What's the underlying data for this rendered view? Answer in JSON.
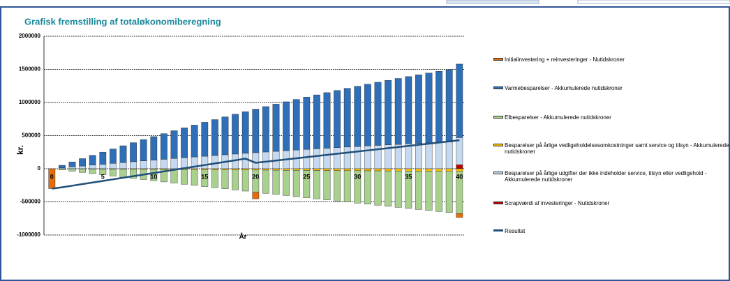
{
  "chart_data": {
    "type": "bar",
    "title": "Grafisk fremstilling af totaløkonomiberegning",
    "y_label": "kr.",
    "x_label": "År",
    "categories": [
      "0",
      null,
      null,
      null,
      null,
      "5",
      null,
      null,
      null,
      null,
      "10",
      null,
      null,
      null,
      null,
      "15",
      null,
      null,
      null,
      null,
      "20",
      null,
      null,
      null,
      null,
      "25",
      null,
      null,
      null,
      null,
      "30",
      null,
      null,
      null,
      null,
      "35",
      null,
      null,
      null,
      null,
      "40"
    ],
    "ylim": [
      -1000000,
      2000000
    ],
    "yticks": [
      -1000000,
      -500000,
      0,
      500000,
      1000000,
      1500000,
      2000000
    ],
    "grid": true,
    "legend": "right",
    "series": [
      {
        "name": "Initialinvestering + reinvesteringer - Nutidskroner",
        "color": "#e46c0a",
        "values": [
          -300000,
          0,
          0,
          0,
          0,
          0,
          0,
          0,
          0,
          0,
          0,
          0,
          0,
          0,
          0,
          0,
          0,
          0,
          0,
          0,
          -100000,
          0,
          0,
          0,
          0,
          0,
          0,
          0,
          0,
          0,
          0,
          0,
          0,
          0,
          0,
          0,
          0,
          0,
          0,
          0,
          -60000
        ]
      },
      {
        "name": "Varmebesparelser - Akkumulerede nutidskroner",
        "color": "#2e6fb7",
        "values": [
          0,
          38000,
          75000,
          112000,
          147000,
          183000,
          218000,
          253000,
          288000,
          321000,
          354000,
          387000,
          419000,
          450000,
          481000,
          512000,
          542000,
          572000,
          601000,
          629000,
          657000,
          685000,
          712000,
          738000,
          763000,
          789000,
          814000,
          839000,
          863000,
          886000,
          909000,
          932000,
          953000,
          975000,
          995000,
          1015000,
          1035000,
          1055000,
          1074000,
          1092000,
          1110000
        ]
      },
      {
        "name": "Elbesparelser - Akkumulerede nutidskroner",
        "color": "#a9d18e",
        "values": [
          0,
          -17000,
          -35000,
          -52000,
          -69000,
          -86000,
          -104000,
          -121000,
          -137000,
          -154000,
          -171000,
          -188000,
          -204000,
          -221000,
          -237000,
          -254000,
          -270000,
          -286000,
          -302000,
          -318000,
          -334000,
          -350000,
          -366000,
          -381000,
          -397000,
          -413000,
          -428000,
          -443000,
          -459000,
          -474000,
          -489000,
          -504000,
          -519000,
          -534000,
          -549000,
          -564000,
          -578000,
          -593000,
          -607000,
          -622000,
          -636000
        ]
      },
      {
        "name": "Besparelser på årlige vedligeholdelsesomkostninger samt service og tilsyn - Akkumulerede nutidskroner",
        "color": "#ffc000",
        "values": [
          0,
          -1000,
          -2000,
          -3000,
          -4000,
          -5000,
          -6000,
          -7000,
          -8000,
          -9000,
          -10000,
          -11000,
          -12000,
          -13000,
          -14000,
          -15000,
          -16000,
          -17000,
          -18000,
          -19000,
          -20000,
          -21000,
          -22000,
          -23000,
          -24000,
          -25000,
          -26000,
          -27000,
          -28000,
          -29000,
          -30000,
          -31000,
          -32000,
          -33000,
          -34000,
          -35000,
          -36000,
          -37000,
          -38000,
          -39000,
          -40000
        ]
      },
      {
        "name": "Besparelser på årlige udgifter der ikke indeholder service, tilsyn eller vedligehold - Akkumulerede nutidskroner",
        "color": "#c5d9f1",
        "values": [
          0,
          14000,
          28000,
          41000,
          55000,
          68000,
          81000,
          94000,
          106000,
          119000,
          131000,
          143000,
          155000,
          167000,
          178000,
          189000,
          200000,
          211000,
          222000,
          233000,
          243000,
          253000,
          263000,
          273000,
          283000,
          292000,
          301000,
          310000,
          319000,
          328000,
          336000,
          344000,
          353000,
          360000,
          368000,
          376000,
          383000,
          390000,
          397000,
          404000,
          410000
        ]
      },
      {
        "name": "Scrapværdi af investeringer - Nutidskroner",
        "color": "#c00000",
        "values": [
          0,
          0,
          0,
          0,
          0,
          0,
          0,
          0,
          0,
          0,
          0,
          0,
          0,
          0,
          0,
          0,
          0,
          0,
          0,
          0,
          0,
          0,
          0,
          0,
          0,
          0,
          0,
          0,
          0,
          0,
          0,
          0,
          0,
          0,
          0,
          0,
          0,
          0,
          0,
          0,
          60000
        ]
      },
      {
        "name": "Resultat",
        "color": "#1f4e79",
        "line": true,
        "values": [
          -300000,
          -280000,
          -256000,
          -232000,
          -208000,
          -184000,
          -160000,
          -136000,
          -112000,
          -88000,
          -64000,
          -40000,
          -16000,
          8000,
          32000,
          56000,
          80000,
          104000,
          128000,
          152000,
          90000,
          107000,
          124000,
          141000,
          158000,
          175000,
          192000,
          209000,
          226000,
          243000,
          260000,
          277000,
          294000,
          311000,
          328000,
          345000,
          362000,
          379000,
          396000,
          413000,
          430000
        ]
      }
    ]
  }
}
